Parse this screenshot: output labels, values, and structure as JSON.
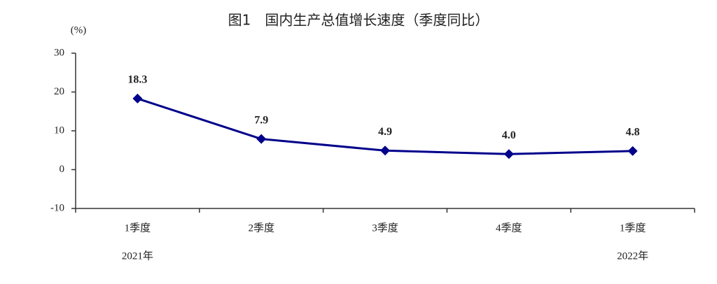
{
  "chart_data": {
    "type": "line",
    "title": "图1　国内生产总值增长速度（季度同比）",
    "y_label": "(%)",
    "categories": [
      "1季度",
      "2季度",
      "3季度",
      "4季度",
      "1季度"
    ],
    "category_groups": [
      "2021年",
      null,
      null,
      null,
      "2022年"
    ],
    "series": [
      {
        "color": "#00008b",
        "values": [
          18.3,
          7.9,
          4.9,
          4.0,
          4.8
        ],
        "value_labels": [
          "18.3",
          "7.9",
          "4.9",
          "4.0",
          "4.8"
        ]
      }
    ],
    "ylim": [
      -10,
      30
    ],
    "yticks": [
      -10,
      0,
      10,
      20,
      30
    ],
    "grid": false
  }
}
